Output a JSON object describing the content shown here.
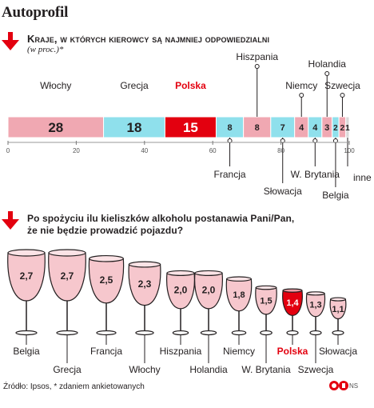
{
  "title": "Autoprofil",
  "section1": {
    "heading": "Kraje, w których kierowcy są najmniej odpowiedzialni",
    "subheading": "(w proc.)*"
  },
  "section2": {
    "heading_line1": "Po spożyciu ilu kieliszków alkoholu postanawia Pani/Pan,",
    "heading_line2": "że nie będzie prowadzić pojazdu?"
  },
  "footer": {
    "source": "Źródło: Ipsos, * zdaniem ankietowanych",
    "credit": "NS"
  },
  "colors": {
    "pink": "#f0a8b2",
    "cyan": "#8fe0ec",
    "red": "#e3000f",
    "grey": "#d9d9d9",
    "dark": "#231f20"
  },
  "chart_data": [
    {
      "type": "bar",
      "orientation": "horizontal-stacked",
      "categories": [
        "Włochy",
        "Grecja",
        "Polska",
        "Francja",
        "Hiszpania",
        "Słowacja",
        "Niemcy",
        "W. Brytania",
        "Holandia",
        "Belgia",
        "Szwecja",
        "inne"
      ],
      "values": [
        28,
        18,
        15,
        8,
        8,
        7,
        4,
        4,
        3,
        2,
        2,
        1
      ],
      "value_labels": [
        "28",
        "18",
        "15",
        "8",
        "8",
        "7",
        "4",
        "4",
        "3",
        "2",
        "2",
        "1"
      ],
      "axis_ticks": [
        "0",
        "20",
        "40",
        "60",
        "80",
        "100"
      ],
      "highlight": "Polska",
      "xlim": [
        0,
        100
      ]
    },
    {
      "type": "bar",
      "style": "wine glasses",
      "categories": [
        "Belgia",
        "Grecja",
        "Francja",
        "Włochy",
        "Hiszpania",
        "Holandia",
        "Niemcy",
        "W. Brytania",
        "Polska",
        "Szwecja",
        "Słowacja"
      ],
      "values": [
        2.7,
        2.7,
        2.5,
        2.3,
        2.0,
        2.0,
        1.8,
        1.5,
        1.4,
        1.3,
        1.1
      ],
      "value_labels": [
        "2,7",
        "2,7",
        "2,5",
        "2,3",
        "2,0",
        "2,0",
        "1,8",
        "1,5",
        "1,4",
        "1,3",
        "1,1"
      ],
      "highlight": "Polska"
    }
  ]
}
